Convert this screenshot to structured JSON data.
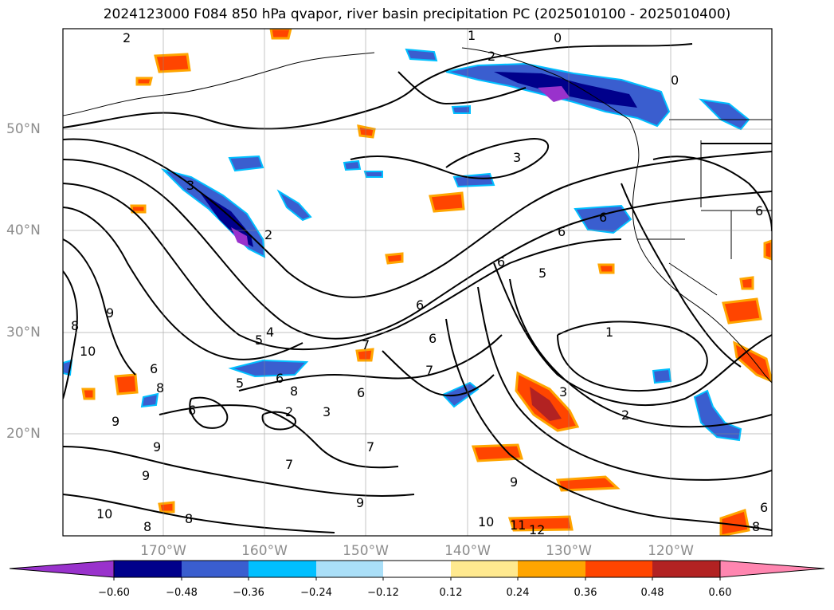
{
  "title": "2024123000 F084 850 hPa qvapor, river basin precipitation PC (2025010100 - 2025010400)",
  "lon_labels": [
    "170°W",
    "160°W",
    "150°W",
    "140°W",
    "130°W",
    "120°W"
  ],
  "lat_labels": [
    "50°N",
    "40°N",
    "30°N",
    "20°N"
  ],
  "colorbar": {
    "ticks": [
      "−0.60",
      "−0.48",
      "−0.36",
      "−0.24",
      "−0.12",
      "0.12",
      "0.24",
      "0.36",
      "0.48",
      "0.60"
    ],
    "colors": [
      "#9932cc",
      "#00008b",
      "#3a5ecf",
      "#00bfff",
      "#aadff8",
      "#ffffff",
      "#ffe98f",
      "#ffa500",
      "#ff4500",
      "#b22222",
      "#ff86b0"
    ]
  },
  "contour_labels": [
    "2",
    "1",
    "0",
    "2",
    "0",
    "3",
    "3",
    "2",
    "6",
    "6",
    "6",
    "5",
    "6",
    "9",
    "8",
    "10",
    "6",
    "5",
    "4",
    "7",
    "6",
    "7",
    "6",
    "8",
    "5",
    "2",
    "6",
    "8",
    "7",
    "9",
    "9",
    "10",
    "8",
    "8",
    "9",
    "7",
    "6",
    "1",
    "3",
    "2",
    "9",
    "10",
    "11",
    "12",
    "8",
    "6",
    "6",
    "3",
    "9"
  ]
}
